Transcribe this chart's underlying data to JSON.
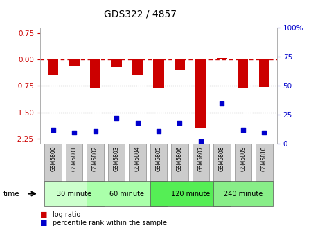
{
  "title": "GDS322 / 4857",
  "samples": [
    "GSM5800",
    "GSM5801",
    "GSM5802",
    "GSM5803",
    "GSM5804",
    "GSM5805",
    "GSM5806",
    "GSM5807",
    "GSM5808",
    "GSM5809",
    "GSM5810"
  ],
  "log_ratio": [
    -0.42,
    -0.18,
    -0.82,
    -0.22,
    -0.44,
    -0.82,
    -0.32,
    -1.95,
    0.05,
    -0.82,
    -0.78
  ],
  "percentile": [
    12,
    10,
    11,
    22,
    18,
    11,
    18,
    2,
    35,
    12,
    10
  ],
  "groups": [
    {
      "label": "30 minute",
      "start": 0,
      "end": 2,
      "color": "#ccffcc"
    },
    {
      "label": "60 minute",
      "start": 2,
      "end": 5,
      "color": "#aaffaa"
    },
    {
      "label": "120 minute",
      "start": 5,
      "end": 8,
      "color": "#55ee55"
    },
    {
      "label": "240 minute",
      "start": 8,
      "end": 10,
      "color": "#88ee88"
    }
  ],
  "ylim_left": [
    -2.4,
    0.9
  ],
  "ylim_right": [
    0,
    100
  ],
  "bar_color": "#cc0000",
  "dot_color": "#0000cc",
  "hline_zero_color": "#cc0000",
  "hline_color": "#000000",
  "yticks_left": [
    0.75,
    0,
    -0.75,
    -1.5,
    -2.25
  ],
  "yticks_right": [
    100,
    75,
    50,
    25,
    0
  ],
  "background_color": "#ffffff"
}
